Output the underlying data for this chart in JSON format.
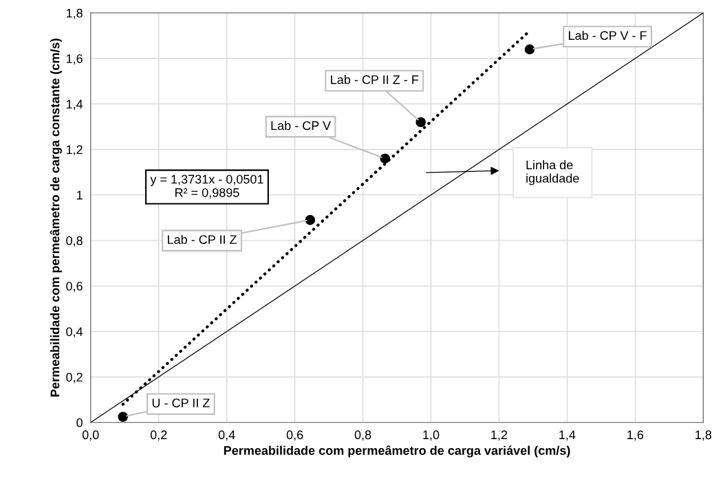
{
  "chart_data": {
    "type": "scatter",
    "xlabel": "Permeabilidade com permeâmetro de carga variável (cm/s)",
    "ylabel": "Permeabilidade com permeâmetro de carga constante (cm/s)",
    "series": [
      {
        "color": "#000000",
        "marker": "circle",
        "x": [
          0.095,
          0.645,
          0.865,
          0.97,
          1.29
        ],
        "values": [
          0.025,
          0.89,
          1.16,
          1.32,
          1.64
        ]
      },
      {
        "type": "line",
        "color": "#000000",
        "marker": "none",
        "line_style": "dotted",
        "x": [
          0.095,
          1.29
        ],
        "values": [
          0.08,
          1.721
        ]
      },
      {
        "type": "line",
        "color": "#000000",
        "marker": "none",
        "line_style": "solid",
        "x": [
          0,
          1.8
        ],
        "values": [
          0,
          1.8
        ]
      }
    ],
    "annotations": [
      {
        "text": "U - CP II Z",
        "x": 0.095,
        "y": 0.025
      },
      {
        "text": "Lab - CP II Z",
        "x": 0.645,
        "y": 0.89
      },
      {
        "text": "Lab - CP V",
        "x": 0.865,
        "y": 1.16
      },
      {
        "text": "Lab - CP II Z - F",
        "x": 0.97,
        "y": 1.32
      },
      {
        "text": "Lab - CP V - F",
        "x": 1.29,
        "y": 1.64
      },
      "y = 1,3731x - 0,0501\nR² = 0,9895",
      "Linha de\nigualdade"
    ],
    "xlim": [
      0,
      1.8
    ],
    "ylim": [
      0,
      1.8
    ],
    "xticks": [
      {
        "value": 0,
        "label": "0,0"
      },
      {
        "value": 0.2,
        "label": "0,2"
      },
      {
        "value": 0.4,
        "label": "0,4"
      },
      {
        "value": 0.6,
        "label": "0,6"
      },
      {
        "value": 0.8,
        "label": "0,8"
      },
      {
        "value": 1.0,
        "label": "1,0"
      },
      {
        "value": 1.2,
        "label": "1,2"
      },
      {
        "value": 1.4,
        "label": "1,4"
      },
      {
        "value": 1.6,
        "label": "1,6"
      },
      {
        "value": 1.8,
        "label": "1,8"
      }
    ],
    "yticks": [
      0,
      {
        "value": 0.2,
        "label": "0,2"
      },
      {
        "value": 0.4,
        "label": "0,4"
      },
      {
        "value": 0.6,
        "label": "0,6"
      },
      {
        "value": 0.8,
        "label": "0,8"
      },
      1,
      {
        "value": 1.2,
        "label": "1,2"
      },
      {
        "value": 1.4,
        "label": "1,4"
      },
      {
        "value": 1.6,
        "label": "1,6"
      },
      {
        "value": 1.8,
        "label": "1,8"
      }
    ],
    "grid": true
  }
}
